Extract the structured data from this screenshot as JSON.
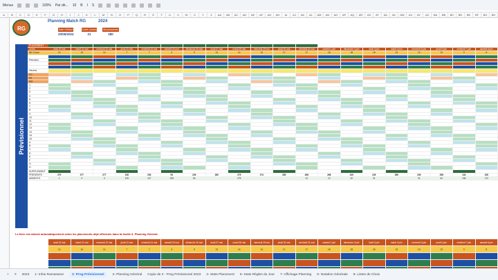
{
  "toolbar": {
    "menu_label": "Menus",
    "zoom": "100%",
    "font": "Par dé...",
    "font_size": "10"
  },
  "sheet": {
    "title": "Planning Match RG",
    "year": "2024",
    "info": [
      {
        "label": "Date d'Début",
        "value": "20/05/2024"
      },
      {
        "label": "Durée (Jours)",
        "value": "21"
      },
      {
        "label": "Nb personnes",
        "value": "280"
      }
    ],
    "side_label": "Prévisionnel",
    "row_labels": [
      "PLACEMENT",
      "Jours",
      "Nb Cours",
      "",
      "Périodes",
      "",
      "",
      "Heures",
      "CC",
      "RJ",
      "SM",
      "1",
      "2",
      "3",
      "4",
      "5",
      "6",
      "7",
      "8",
      "9",
      "10",
      "11",
      "12",
      "13",
      "14",
      "15",
      "16",
      "A",
      "B",
      "C",
      "D",
      "E",
      "F",
      "G",
      "H",
      "SUPPLEMENT",
      "PRESENTS",
      "ABSENTS"
    ],
    "days": [
      "lundi 20 mai",
      "mardi 21 mai",
      "mercredi 22 mai",
      "jeudi 23 mai",
      "vendredi 24 mai",
      "samedi 25 mai",
      "dimanche 26 mai",
      "lundi 27 mai",
      "mardi 28 mai",
      "mercredi 29 mai",
      "jeudi 30 mai",
      "vendredi 31 mai",
      "samedi 1 juin",
      "dimanche 2 juin",
      "lundi 3 juin",
      "mardi 4 juin",
      "mercredi 5 juin",
      "jeudi 6 juin",
      "vendredi 7 juin",
      "samedi 8 juin"
    ],
    "nb_cours": [
      "14",
      "14",
      "14",
      "7",
      "7",
      "3",
      "9",
      "13",
      "14",
      "14",
      "17",
      "17",
      "18",
      "18",
      "18",
      "13",
      "13",
      "13",
      "9",
      "8"
    ],
    "presents": [
      "270",
      "277",
      "277",
      "318",
      "253",
      "54",
      "226",
      "280",
      "275",
      "274",
      "280",
      "268",
      "268",
      "249",
      "249",
      "266",
      "249",
      "258",
      "144",
      "108"
    ],
    "absents": [
      "1",
      "3",
      "3",
      "125",
      "127",
      "228",
      "54",
      "",
      "275",
      "",
      "",
      "12",
      "12",
      "32",
      "31",
      "",
      "31",
      "62",
      "136",
      "172"
    ],
    "note": "Le fixer est calculé automatiquement selon les placements déjà effectués dans la feuille 3- Planning Général"
  },
  "tabs": [
    "2023",
    "1- Infos Ramasseur",
    "2- Prog Prévisionnel",
    "3- Planning Général",
    "Copie de 2 - Prog Prévisionnel 2023",
    "4- Stats Placement",
    "5- Stats Règles du Jour",
    "7- Affichage Planning",
    "6- Notation Générale",
    "8- Listes de Choix"
  ],
  "active_tab": "2- Prog Prévisionnel",
  "colors": {
    "accent": "#1d4fa5",
    "orange": "#c8541f",
    "green": "#2e6b3c",
    "cell_green": "#b7dfc2",
    "cell_blue": "#bfe3ec"
  }
}
